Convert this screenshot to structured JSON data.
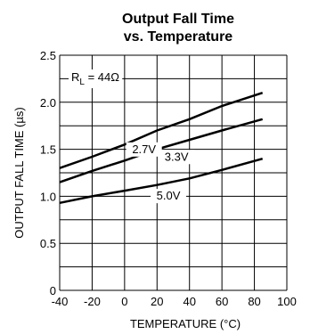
{
  "chart_data": {
    "type": "line",
    "title": "Output Fall Time",
    "subtitle": "vs. Temperature",
    "xlabel": "TEMPERATURE (°C)",
    "ylabel": "OUTPUT FALL TIME (µs)",
    "xlim": [
      -40,
      100
    ],
    "ylim": [
      0,
      2.5
    ],
    "x_ticks": [
      "-40",
      "-20",
      "0",
      "20",
      "40",
      "60",
      "80",
      "100"
    ],
    "y_ticks": [
      "0",
      "0.5",
      "1.0",
      "1.5",
      "2.0",
      "2.5"
    ],
    "grid": true,
    "annotation": "R_L = 44Ω",
    "series": [
      {
        "name": "2.7V",
        "x": [
          -40,
          -20,
          0,
          20,
          40,
          60,
          85
        ],
        "y": [
          1.3,
          1.42,
          1.55,
          1.7,
          1.82,
          1.96,
          2.1
        ]
      },
      {
        "name": "3.3V",
        "x": [
          -40,
          -20,
          0,
          20,
          40,
          60,
          85
        ],
        "y": [
          1.15,
          1.27,
          1.38,
          1.5,
          1.6,
          1.7,
          1.82
        ]
      },
      {
        "name": "5.0V",
        "x": [
          -40,
          -20,
          0,
          20,
          40,
          60,
          85
        ],
        "y": [
          0.93,
          1.0,
          1.06,
          1.12,
          1.19,
          1.28,
          1.4
        ]
      }
    ]
  }
}
